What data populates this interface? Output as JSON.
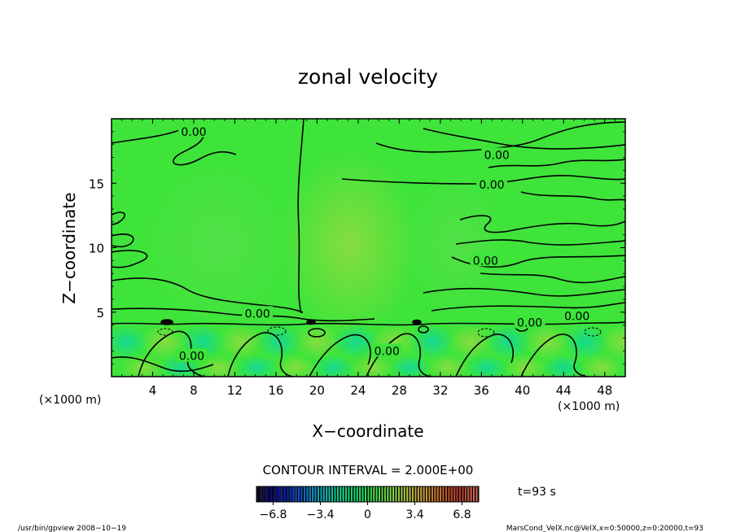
{
  "chart_data": {
    "type": "heatmap",
    "title": "zonal velocity",
    "xlabel": "X−coordinate",
    "ylabel": "Z−coordinate",
    "x_unit_left": "(×1000 m)",
    "x_unit_right": "(×1000 m)",
    "xlim": [
      0,
      50
    ],
    "ylim": [
      0,
      20
    ],
    "x_ticks": [
      4,
      8,
      12,
      16,
      20,
      24,
      28,
      32,
      36,
      40,
      44,
      48
    ],
    "y_ticks": [
      5,
      10,
      15
    ],
    "contour_interval_text": "CONTOUR INTERVAL = 2.000E+00",
    "contour_labels": [
      {
        "text": "0.00",
        "x": 8.0,
        "y": 19.0
      },
      {
        "text": "0.00",
        "x": 37.5,
        "y": 17.2
      },
      {
        "text": "0.00",
        "x": 37.0,
        "y": 14.9
      },
      {
        "text": "0.00",
        "x": 36.4,
        "y": 9.0
      },
      {
        "text": "0.00",
        "x": 14.2,
        "y": 4.9
      },
      {
        "text": "0.00",
        "x": 45.3,
        "y": 4.7
      },
      {
        "text": "0.00",
        "x": 40.7,
        "y": 4.2
      },
      {
        "text": "0.00",
        "x": 26.8,
        "y": 2.0
      },
      {
        "text": "0.00",
        "x": 7.8,
        "y": 1.6
      }
    ],
    "colorbar": {
      "range": [
        -8,
        8
      ],
      "tick_values": [
        -6.8,
        -3.4,
        0,
        3.4,
        6.8
      ],
      "tick_labels": [
        "−6.8",
        "−3.4",
        "0",
        "3.4",
        "6.8"
      ],
      "colors": [
        "#000020",
        "#0000a0",
        "#0040d0",
        "#00a0c8",
        "#00d890",
        "#00e060",
        "#40e040",
        "#90d840",
        "#c8b030",
        "#d07020",
        "#c03020",
        "#e06050"
      ]
    },
    "time_label": "t=93 s"
  },
  "footer": {
    "left": "/usr/bin/gpview   2008−10−19",
    "right": "MarsCond_VelX.nc@VelX,x=0:50000,z=0:20000,t=93"
  }
}
